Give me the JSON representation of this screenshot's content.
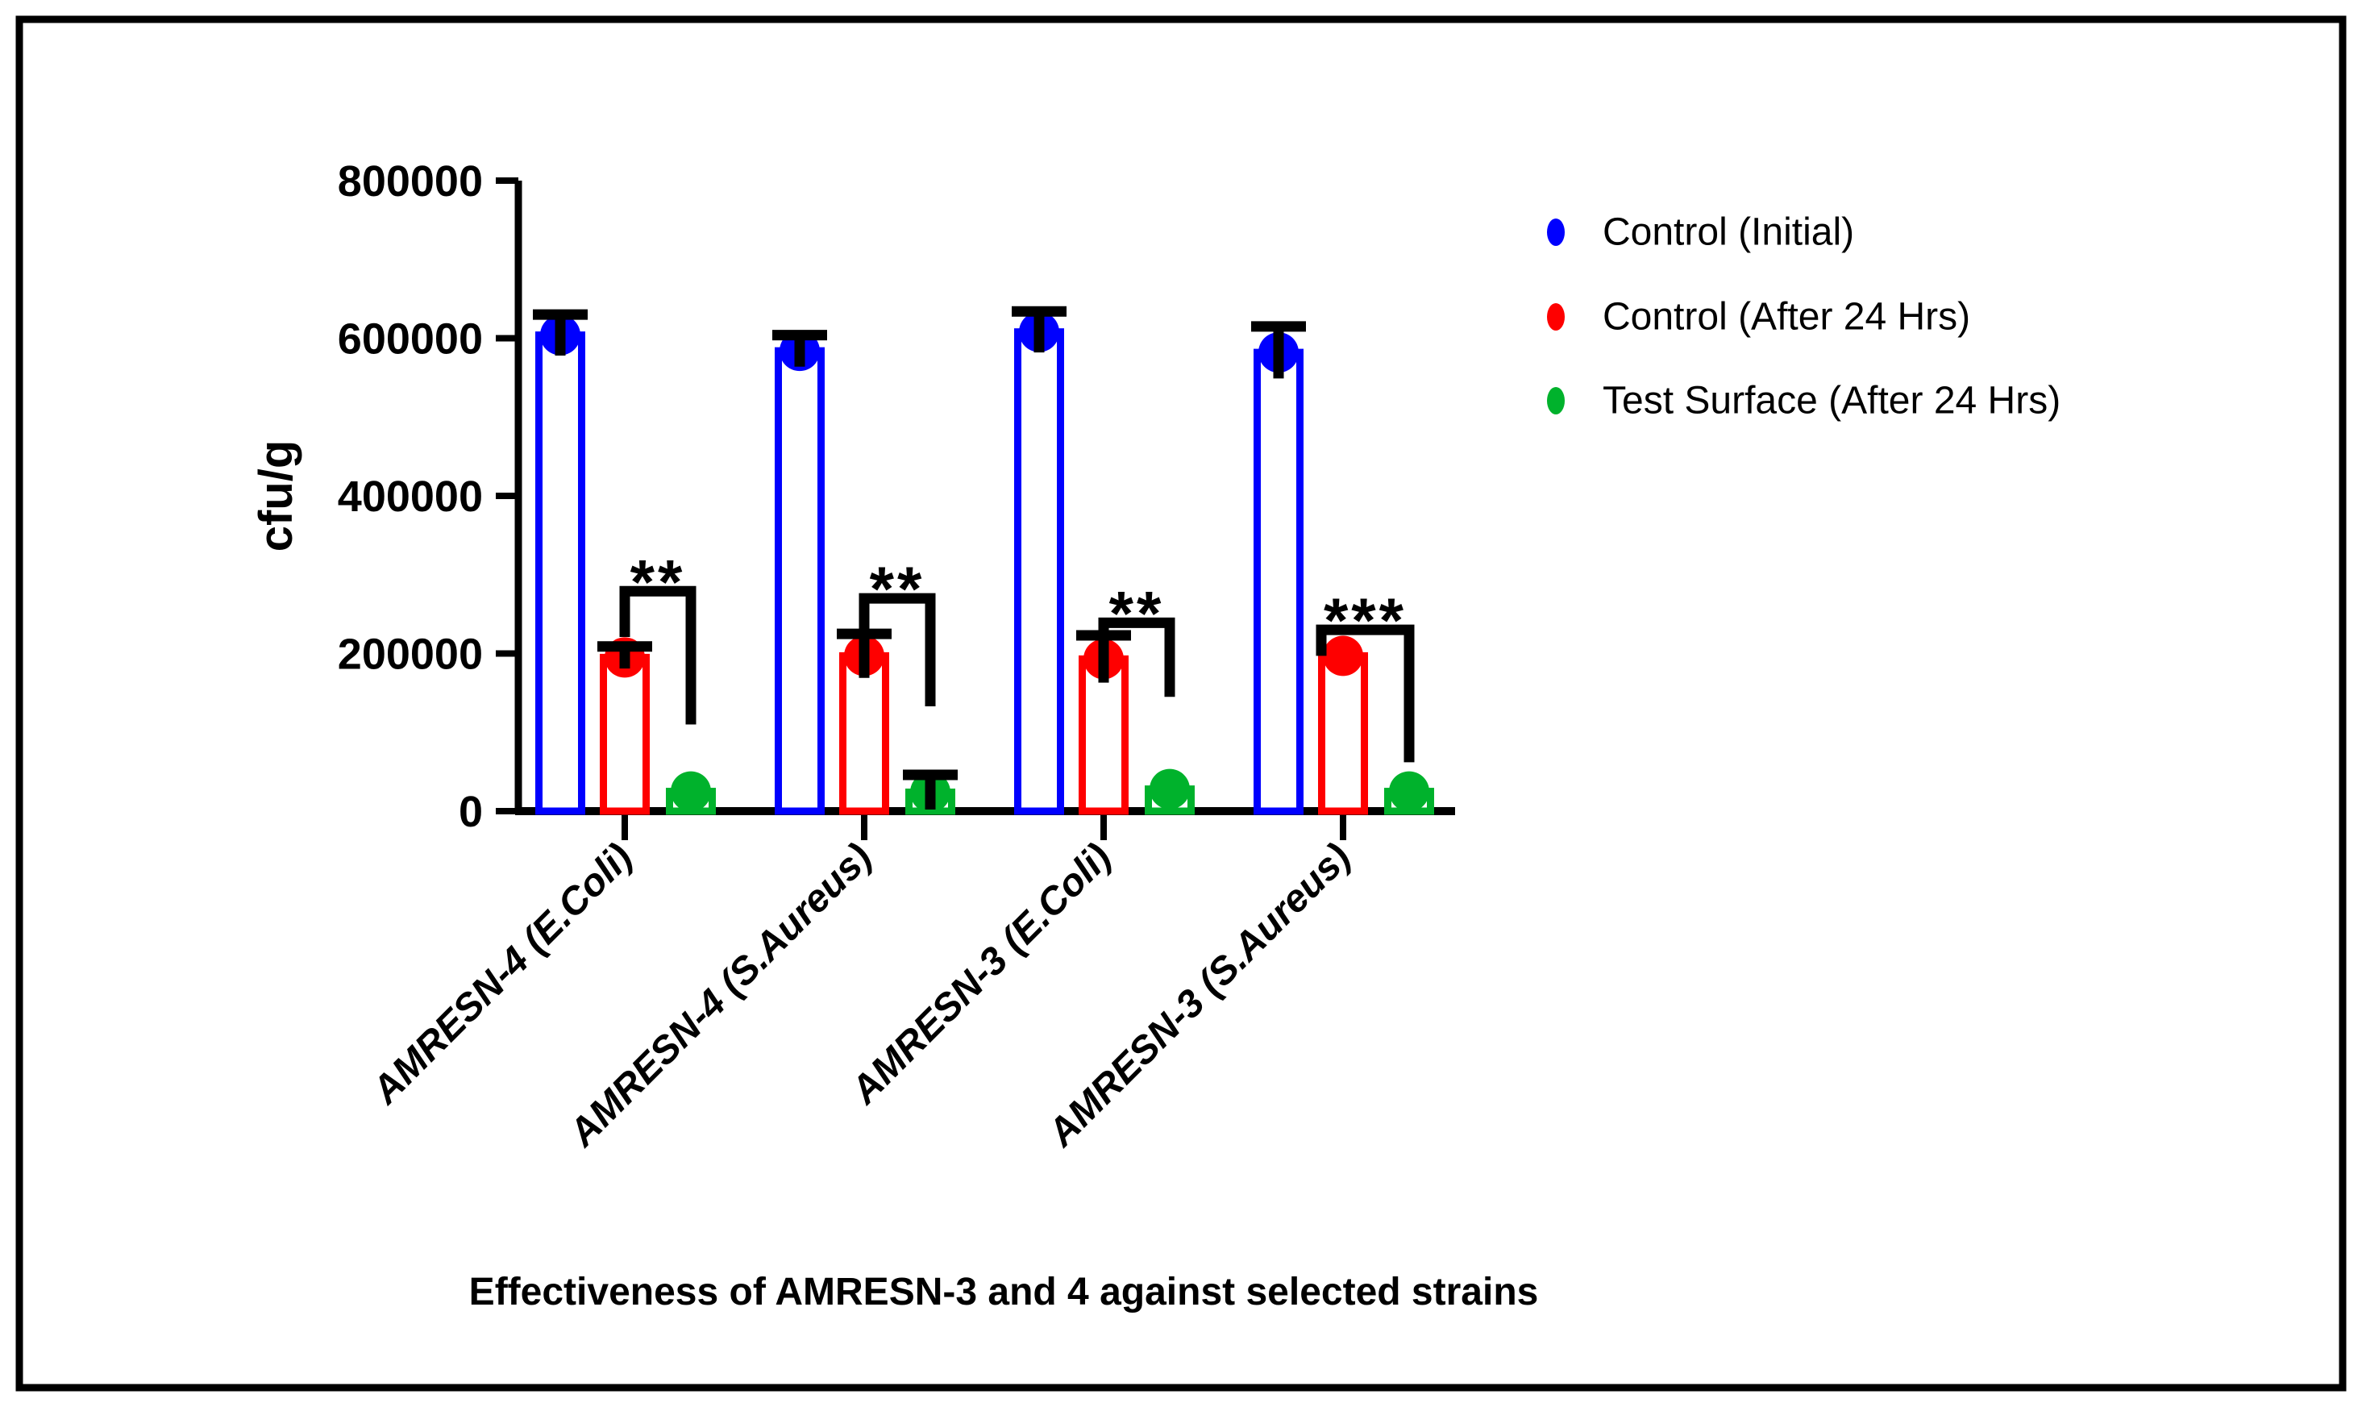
{
  "figure": {
    "background": "#ffffff",
    "border_color": "#000000"
  },
  "chart_data": {
    "type": "bar",
    "title": "Effectiveness of AMRESN-3 and 4 against selected strains",
    "ylabel": "cfu/g",
    "ylim": [
      0,
      800000
    ],
    "ytick_step": 200000,
    "ytick_labels": [
      "0",
      "200000",
      "400000",
      "600000",
      "800000"
    ],
    "grid": false,
    "legend_position": "right-top",
    "bar_style": "outline-with-point-marker",
    "error_bar_color": "#000000",
    "categories": [
      "AMRESN-4 (E.Coli)",
      "AMRESN-4 (S.Aureus)",
      "AMRESN-3 (E.Coli)",
      "AMRESN-3 (S.Aureus)"
    ],
    "series": [
      {
        "name": "Control (Initial)",
        "color": "#0000fe",
        "values": [
          604000,
          584000,
          608000,
          582000
        ],
        "errors": [
          26000,
          20000,
          26000,
          33000
        ]
      },
      {
        "name": "Control (After 24 Hrs)",
        "color": "#fe0000",
        "values": [
          195000,
          197000,
          193000,
          197000
        ],
        "errors": [
          14000,
          28000,
          30000,
          0
        ]
      },
      {
        "name": "Test Surface (After 24 Hrs)",
        "color": "#00b22c",
        "values": [
          25000,
          24000,
          28000,
          25000
        ],
        "errors": [
          0,
          22000,
          0,
          0
        ]
      }
    ],
    "significance": [
      {
        "group": 0,
        "label": "**",
        "from_series": 1,
        "to_series": 2,
        "top": 279000,
        "left_drop_to": 221000,
        "right_drop_to": 110000,
        "left_x_offset": 0
      },
      {
        "group": 1,
        "label": "**",
        "from_series": 1,
        "to_series": 2,
        "top": 270000,
        "left_drop_to": 229000,
        "right_drop_to": 133000,
        "left_x_offset": 0
      },
      {
        "group": 2,
        "label": "**",
        "from_series": 1,
        "to_series": 2,
        "top": 239000,
        "left_drop_to": 211000,
        "right_drop_to": 145000,
        "left_x_offset": 0
      },
      {
        "group": 3,
        "label": "***",
        "from_series": 1,
        "to_series": 2,
        "top": 230000,
        "left_drop_to": 197000,
        "right_drop_to": 62000,
        "left_x_offset": -27
      }
    ]
  }
}
